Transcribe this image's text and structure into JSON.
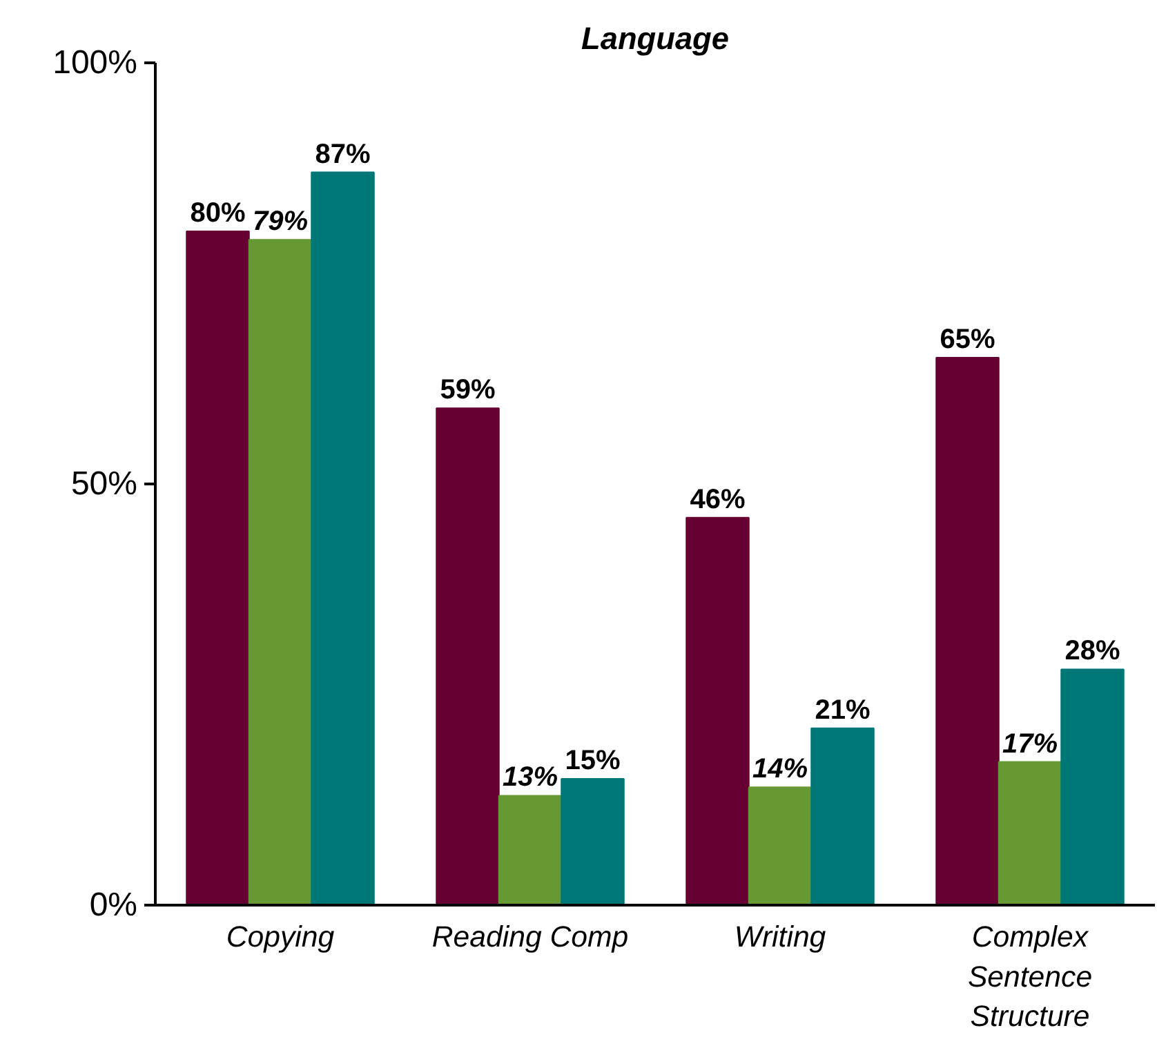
{
  "chart_data": {
    "type": "bar",
    "title": "Language",
    "categories": [
      "Copying",
      "Reading Comp",
      "Writing",
      "Complex Sentence Structure"
    ],
    "series": [
      {
        "color": "#660033",
        "values": [
          80,
          59,
          46,
          65
        ],
        "value_labels": [
          "80%",
          "59%",
          "46%",
          "65%"
        ]
      },
      {
        "color": "#669933",
        "values": [
          79,
          13,
          14,
          17
        ],
        "value_labels": [
          "79%",
          "13%",
          "14%",
          "17%"
        ]
      },
      {
        "color": "#007777",
        "values": [
          87,
          15,
          21,
          28
        ],
        "value_labels": [
          "87%",
          "15%",
          "21%",
          "28%"
        ]
      }
    ],
    "ylim": [
      0,
      100
    ],
    "yticks": [
      {
        "value": 0,
        "label": "0%"
      },
      {
        "value": 50,
        "label": "50%"
      },
      {
        "value": 100,
        "label": "100%"
      }
    ],
    "grid": false
  }
}
